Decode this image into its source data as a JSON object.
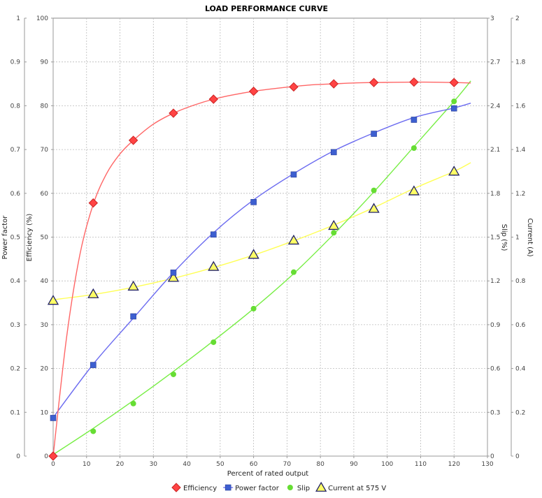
{
  "chart_data": {
    "type": "line",
    "title": "LOAD PERFORMANCE CURVE",
    "xlabel": "Percent of rated output",
    "xlim": [
      0,
      130
    ],
    "x_ticks": [
      "0",
      "10",
      "20",
      "30",
      "40",
      "50",
      "60",
      "70",
      "80",
      "90",
      "100",
      "110",
      "120",
      "130"
    ],
    "grid": true,
    "legend_position": "bottom",
    "axes": {
      "power_factor": {
        "label": "Power factor",
        "lim": [
          0,
          1
        ],
        "ticks": [
          "0",
          "0.1",
          "0.2",
          "0.3",
          "0.4",
          "0.5",
          "0.6",
          "0.7",
          "0.8",
          "0.9",
          "1"
        ]
      },
      "efficiency": {
        "label": "Efficiency (%)",
        "lim": [
          0,
          100
        ],
        "ticks": [
          "0",
          "10",
          "20",
          "30",
          "40",
          "50",
          "60",
          "70",
          "80",
          "90",
          "100"
        ]
      },
      "slip": {
        "label": "Slip (%)",
        "lim": [
          0,
          3
        ],
        "ticks": [
          "0",
          "0.3",
          "0.6",
          "0.9",
          "1.2",
          "1.5",
          "1.8",
          "2.1",
          "2.4",
          "2.7",
          "3"
        ]
      },
      "current": {
        "label": "Current (A)",
        "lim": [
          0,
          2
        ],
        "ticks": [
          "0",
          "0.2",
          "0.4",
          "0.6",
          "0.8",
          "1",
          "1.2",
          "1.4",
          "1.6",
          "1.8",
          "2"
        ]
      }
    },
    "series": [
      {
        "name": "Efficiency",
        "axis": "efficiency",
        "color": "#ff4444",
        "line_color": "#ff6666",
        "marker": "diamond",
        "x": [
          0,
          12,
          24,
          36,
          48,
          60,
          72,
          84,
          96,
          108,
          120
        ],
        "values": [
          0,
          57.8,
          72.1,
          78.3,
          81.5,
          83.3,
          84.3,
          85.0,
          85.3,
          85.4,
          85.3
        ],
        "curve_x": [
          0,
          4,
          8,
          12,
          16,
          20,
          24,
          30,
          36,
          42,
          48,
          54,
          60,
          66,
          72,
          78,
          84,
          90,
          96,
          102,
          108,
          114,
          120,
          125
        ],
        "curve_y": [
          0,
          27,
          46,
          57.5,
          64.5,
          69,
          72.1,
          75.8,
          78.3,
          80.1,
          81.5,
          82.5,
          83.3,
          83.9,
          84.4,
          84.8,
          85.0,
          85.2,
          85.3,
          85.35,
          85.4,
          85.38,
          85.3,
          85.2
        ]
      },
      {
        "name": "Power factor",
        "axis": "power_factor",
        "color": "#3d5fd0",
        "line_color": "#6b6bf0",
        "marker": "square",
        "x": [
          0,
          12,
          24,
          36,
          48,
          60,
          72,
          84,
          96,
          108,
          120
        ],
        "values": [
          0.087,
          0.208,
          0.319,
          0.419,
          0.506,
          0.58,
          0.643,
          0.694,
          0.736,
          0.768,
          0.794
        ],
        "curve_x": [
          0,
          12,
          24,
          36,
          48,
          60,
          72,
          84,
          96,
          108,
          120,
          125
        ],
        "curve_y": [
          0.088,
          0.21,
          0.315,
          0.419,
          0.51,
          0.585,
          0.645,
          0.697,
          0.738,
          0.773,
          0.795,
          0.806
        ]
      },
      {
        "name": "Slip",
        "axis": "slip",
        "color": "#66dd33",
        "line_color": "#77ee44",
        "marker": "circle",
        "x": [
          0,
          12,
          24,
          36,
          48,
          60,
          72,
          84,
          96,
          108,
          120
        ],
        "values": [
          0,
          0.17,
          0.36,
          0.56,
          0.78,
          1.01,
          1.26,
          1.53,
          1.82,
          2.11,
          2.43
        ],
        "curve_x": [
          0,
          12,
          24,
          36,
          48,
          60,
          72,
          84,
          96,
          108,
          120,
          125
        ],
        "curve_y": [
          0.01,
          0.19,
          0.38,
          0.58,
          0.79,
          1.01,
          1.25,
          1.52,
          1.81,
          2.12,
          2.43,
          2.57
        ]
      },
      {
        "name": "Current at 575 V",
        "axis": "current",
        "color": "#ffff66",
        "line_color": "#ffff55",
        "marker": "triangle",
        "x": [
          0,
          12,
          24,
          36,
          48,
          60,
          72,
          84,
          96,
          108,
          120
        ],
        "values": [
          0.71,
          0.74,
          0.775,
          0.815,
          0.865,
          0.92,
          0.985,
          1.052,
          1.13,
          1.21,
          1.3
        ],
        "curve_x": [
          0,
          12,
          24,
          36,
          48,
          60,
          72,
          84,
          96,
          108,
          120,
          125
        ],
        "curve_y": [
          0.714,
          0.738,
          0.771,
          0.812,
          0.861,
          0.918,
          0.983,
          1.055,
          1.135,
          1.222,
          1.3,
          1.34
        ]
      }
    ]
  }
}
